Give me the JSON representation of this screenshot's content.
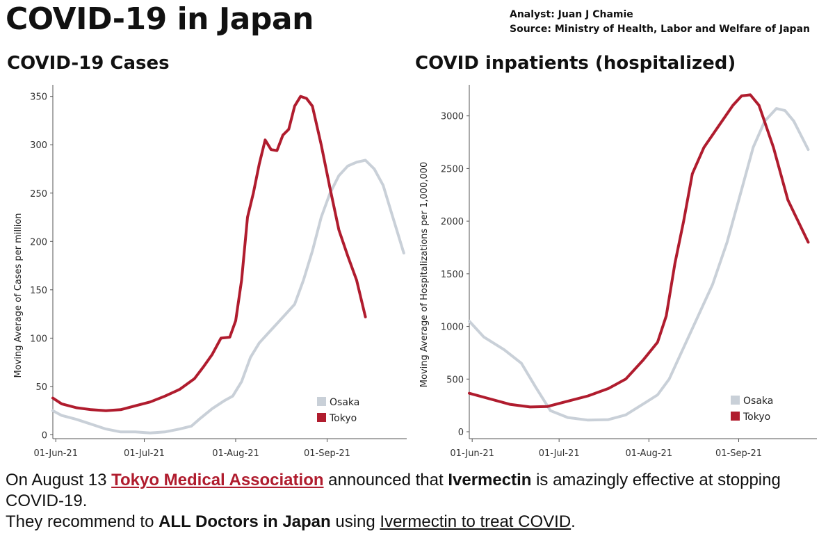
{
  "header": {
    "title": "COVID-19 in Japan",
    "analyst": "Analyst: Juan J Chamie",
    "source": "Source: Ministry of Health, Labor and Welfare of Japan"
  },
  "colors": {
    "osaka": "#c9d0d8",
    "tokyo": "#b01c2e",
    "link": "#b01c2e"
  },
  "chart_data": [
    {
      "type": "line",
      "title": "COVID-19 Cases",
      "xlabel": "",
      "ylabel": "Moving Average of Cases per million",
      "x_ticks": [
        "01-Jun-21",
        "01-Jul-21",
        "01-Aug-21",
        "01-Sep-21"
      ],
      "y_ticks": [
        0,
        50,
        100,
        150,
        200,
        250,
        300,
        350
      ],
      "ylim": [
        -4,
        362
      ],
      "xlim": [
        "2021-05-31",
        "2021-09-28"
      ],
      "grid": false,
      "legend": {
        "position": "bottom-right",
        "entries": [
          "Osaka",
          "Tokyo"
        ]
      },
      "series": [
        {
          "name": "Osaka",
          "color": "#c9d0d8",
          "points": [
            [
              "2021-05-31",
              25
            ],
            [
              "2021-06-03",
              20
            ],
            [
              "2021-06-08",
              16
            ],
            [
              "2021-06-13",
              11
            ],
            [
              "2021-06-18",
              6
            ],
            [
              "2021-06-23",
              3
            ],
            [
              "2021-06-28",
              3
            ],
            [
              "2021-07-03",
              2
            ],
            [
              "2021-07-08",
              3
            ],
            [
              "2021-07-13",
              6
            ],
            [
              "2021-07-17",
              9
            ],
            [
              "2021-07-20",
              17
            ],
            [
              "2021-07-24",
              27
            ],
            [
              "2021-07-28",
              35
            ],
            [
              "2021-07-31",
              40
            ],
            [
              "2021-08-03",
              55
            ],
            [
              "2021-08-06",
              80
            ],
            [
              "2021-08-09",
              95
            ],
            [
              "2021-08-12",
              105
            ],
            [
              "2021-08-15",
              115
            ],
            [
              "2021-08-18",
              125
            ],
            [
              "2021-08-21",
              135
            ],
            [
              "2021-08-24",
              160
            ],
            [
              "2021-08-27",
              190
            ],
            [
              "2021-08-30",
              225
            ],
            [
              "2021-09-02",
              250
            ],
            [
              "2021-09-05",
              268
            ],
            [
              "2021-09-08",
              278
            ],
            [
              "2021-09-11",
              282
            ],
            [
              "2021-09-14",
              284
            ],
            [
              "2021-09-17",
              275
            ],
            [
              "2021-09-20",
              258
            ],
            [
              "2021-09-23",
              228
            ],
            [
              "2021-09-27",
              188
            ]
          ]
        },
        {
          "name": "Tokyo",
          "color": "#b01c2e",
          "points": [
            [
              "2021-05-31",
              38
            ],
            [
              "2021-06-03",
              32
            ],
            [
              "2021-06-08",
              28
            ],
            [
              "2021-06-13",
              26
            ],
            [
              "2021-06-18",
              25
            ],
            [
              "2021-06-23",
              26
            ],
            [
              "2021-06-28",
              30
            ],
            [
              "2021-07-03",
              34
            ],
            [
              "2021-07-08",
              40
            ],
            [
              "2021-07-13",
              47
            ],
            [
              "2021-07-18",
              58
            ],
            [
              "2021-07-21",
              70
            ],
            [
              "2021-07-24",
              83
            ],
            [
              "2021-07-27",
              100
            ],
            [
              "2021-07-30",
              101
            ],
            [
              "2021-08-01",
              118
            ],
            [
              "2021-08-03",
              160
            ],
            [
              "2021-08-05",
              225
            ],
            [
              "2021-08-07",
              250
            ],
            [
              "2021-08-09",
              280
            ],
            [
              "2021-08-11",
              305
            ],
            [
              "2021-08-13",
              295
            ],
            [
              "2021-08-15",
              294
            ],
            [
              "2021-08-17",
              310
            ],
            [
              "2021-08-19",
              316
            ],
            [
              "2021-08-21",
              340
            ],
            [
              "2021-08-23",
              350
            ],
            [
              "2021-08-25",
              348
            ],
            [
              "2021-08-27",
              340
            ],
            [
              "2021-08-30",
              300
            ],
            [
              "2021-09-02",
              255
            ],
            [
              "2021-09-05",
              212
            ],
            [
              "2021-09-08",
              185
            ],
            [
              "2021-09-11",
              160
            ],
            [
              "2021-09-14",
              122
            ]
          ]
        }
      ]
    },
    {
      "type": "line",
      "title": "COVID inpatients (hospitalized)",
      "xlabel": "",
      "ylabel": "Moving Average of Hospitalizations per 1,000,000",
      "x_ticks": [
        "01-Jun-21",
        "01-Jul-21",
        "01-Aug-21",
        "01-Sep-21"
      ],
      "y_ticks": [
        0,
        500,
        1000,
        1500,
        2000,
        2500,
        3000
      ],
      "ylim": [
        -66,
        3295
      ],
      "xlim": [
        "2021-05-31",
        "2021-09-28"
      ],
      "grid": false,
      "legend": {
        "position": "bottom-right",
        "entries": [
          "Osaka",
          "Tokyo"
        ]
      },
      "series": [
        {
          "name": "Osaka",
          "color": "#c9d0d8",
          "points": [
            [
              "2021-05-31",
              1050
            ],
            [
              "2021-06-05",
              900
            ],
            [
              "2021-06-12",
              780
            ],
            [
              "2021-06-18",
              650
            ],
            [
              "2021-06-23",
              420
            ],
            [
              "2021-06-28",
              200
            ],
            [
              "2021-07-04",
              135
            ],
            [
              "2021-07-11",
              110
            ],
            [
              "2021-07-18",
              115
            ],
            [
              "2021-07-24",
              160
            ],
            [
              "2021-07-31",
              280
            ],
            [
              "2021-08-04",
              350
            ],
            [
              "2021-08-08",
              500
            ],
            [
              "2021-08-13",
              800
            ],
            [
              "2021-08-18",
              1100
            ],
            [
              "2021-08-23",
              1400
            ],
            [
              "2021-08-28",
              1800
            ],
            [
              "2021-09-02",
              2300
            ],
            [
              "2021-09-06",
              2700
            ],
            [
              "2021-09-10",
              2950
            ],
            [
              "2021-09-14",
              3070
            ],
            [
              "2021-09-17",
              3050
            ],
            [
              "2021-09-20",
              2950
            ],
            [
              "2021-09-25",
              2680
            ]
          ]
        },
        {
          "name": "Tokyo",
          "color": "#b01c2e",
          "points": [
            [
              "2021-05-31",
              365
            ],
            [
              "2021-06-06",
              320
            ],
            [
              "2021-06-14",
              260
            ],
            [
              "2021-06-21",
              235
            ],
            [
              "2021-06-27",
              240
            ],
            [
              "2021-07-04",
              290
            ],
            [
              "2021-07-11",
              340
            ],
            [
              "2021-07-18",
              410
            ],
            [
              "2021-07-24",
              500
            ],
            [
              "2021-07-30",
              680
            ],
            [
              "2021-08-04",
              850
            ],
            [
              "2021-08-07",
              1100
            ],
            [
              "2021-08-10",
              1600
            ],
            [
              "2021-08-13",
              2000
            ],
            [
              "2021-08-16",
              2450
            ],
            [
              "2021-08-20",
              2700
            ],
            [
              "2021-08-25",
              2900
            ],
            [
              "2021-08-30",
              3100
            ],
            [
              "2021-09-02",
              3190
            ],
            [
              "2021-09-05",
              3200
            ],
            [
              "2021-09-08",
              3100
            ],
            [
              "2021-09-13",
              2700
            ],
            [
              "2021-09-18",
              2200
            ],
            [
              "2021-09-25",
              1800
            ]
          ]
        }
      ]
    }
  ],
  "footer": {
    "line1_a": "On August 13 ",
    "line1_link": "Tokyo Medical Association",
    "line1_b": " announced that ",
    "line1_strong": "Ivermectin",
    "line1_c": " is amazingly effective at stopping COVID-19.",
    "line2_a": "They recommend to ",
    "line2_strong": "ALL Doctors in Japan",
    "line2_b": " using ",
    "line2_link": "Ivermectin to treat COVID",
    "line2_c": "."
  }
}
